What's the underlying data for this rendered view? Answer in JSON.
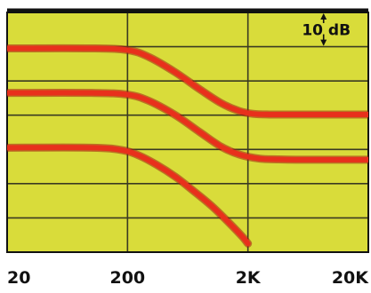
{
  "chart_data": {
    "type": "line",
    "x_scale": "log",
    "xlim": [
      20,
      20000
    ],
    "ylim": [
      -70,
      0
    ],
    "x_ticks": [
      {
        "value": 20,
        "label": "20"
      },
      {
        "value": 200,
        "label": "200"
      },
      {
        "value": 2000,
        "label": "2K"
      },
      {
        "value": 20000,
        "label": "20K"
      }
    ],
    "grid": true,
    "scale_annotation": "10 dB",
    "colors": {
      "background": "#d9dc3a",
      "grid": "#3a3a22",
      "frame": "#111111",
      "curve": "#e8301c",
      "curve_edge": "#a11e10",
      "text": "#111111"
    },
    "series": [
      {
        "x": [
          20,
          100,
          200,
          300,
          500,
          800,
          1200,
          1700,
          2200,
          3000,
          5000,
          10000,
          20000
        ],
        "values": [
          -10.5,
          -10.5,
          -11,
          -13,
          -17.5,
          -22.5,
          -26.5,
          -28.8,
          -29.6,
          -29.8,
          -29.8,
          -29.8,
          -29.8
        ]
      },
      {
        "x": [
          20,
          100,
          200,
          300,
          500,
          800,
          1200,
          1700,
          2500,
          3500,
          5000,
          10000,
          20000
        ],
        "values": [
          -23.5,
          -23.5,
          -24,
          -25.8,
          -30,
          -35,
          -39.2,
          -41.5,
          -42.7,
          -42.9,
          -43,
          -43,
          -43
        ]
      },
      {
        "x": [
          20,
          100,
          180,
          250,
          350,
          500,
          700,
          1000,
          1400,
          1800,
          2000
        ],
        "values": [
          -39.5,
          -39.5,
          -40.2,
          -41.8,
          -44.5,
          -48,
          -52,
          -56.5,
          -61.5,
          -65.5,
          -67.5
        ]
      }
    ]
  }
}
